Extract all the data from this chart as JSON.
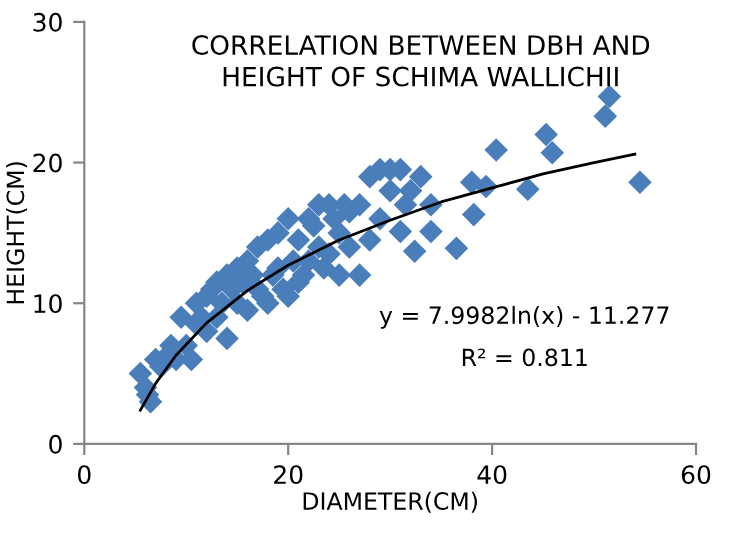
{
  "chart_data": {
    "type": "scatter",
    "title": "CORRELATION BETWEEN DBH AND\nHEIGHT OF SCHIMA WALLICHII",
    "xlabel": "DIAMETER(CM)",
    "ylabel": "HEIGHT(CM)",
    "xlim": [
      0,
      60
    ],
    "ylim": [
      0,
      30
    ],
    "xticks": [
      0,
      20,
      40,
      60
    ],
    "yticks": [
      0,
      10,
      20,
      30
    ],
    "grid": false,
    "marker": "diamond",
    "series": [
      {
        "color": "#4a7ebb",
        "x": [
          5.5,
          6,
          6.5,
          6.2,
          7,
          7.5,
          8,
          8.5,
          9,
          9.5,
          10,
          10.5,
          11,
          11,
          11.5,
          12,
          12,
          12.5,
          13,
          13,
          13.5,
          14,
          14,
          14.5,
          15,
          15,
          15.5,
          16,
          16,
          16.5,
          17,
          17,
          17.5,
          18,
          18,
          18.5,
          19,
          19,
          19.5,
          20,
          20,
          20.5,
          21,
          21,
          21.5,
          22,
          22,
          22.5,
          23,
          23,
          23.5,
          24,
          24,
          24.5,
          25,
          25,
          25.5,
          26,
          26,
          27,
          27,
          28,
          28,
          29,
          29,
          30,
          30,
          31,
          31,
          31.5,
          32,
          32.4,
          33,
          34,
          34,
          36.5,
          38,
          38.2,
          39.4,
          40.4,
          43.5,
          45.3,
          45.9,
          51.1,
          51.5,
          54.5
        ],
        "values": [
          5,
          4,
          3,
          3.5,
          6,
          5.5,
          6.2,
          7,
          6,
          9,
          7,
          6,
          10,
          8.5,
          9,
          10.5,
          8,
          11,
          11.5,
          9,
          10,
          12,
          7.5,
          11,
          12.5,
          10,
          11.5,
          13,
          9.5,
          12,
          14,
          11,
          10.5,
          14.5,
          10,
          12,
          15,
          12.5,
          11,
          16,
          10.5,
          13,
          14.5,
          11.5,
          12,
          16,
          13,
          15.5,
          17,
          14,
          12.5,
          17,
          13.5,
          16,
          15,
          12,
          17,
          16.5,
          14,
          17,
          12,
          19,
          14.5,
          19.5,
          16,
          18,
          19.5,
          19.5,
          15.1,
          17,
          18,
          13.7,
          19,
          17,
          15.1,
          13.9,
          18.6,
          16.3,
          18.3,
          20.9,
          18.1,
          22,
          20.7,
          23.3,
          24.7,
          18.6
        ]
      },
      {
        "type": "line",
        "color": "#000000",
        "marker": "none",
        "x": [
          5.5,
          7,
          9,
          12,
          16,
          20,
          25,
          30,
          35,
          40,
          45,
          50,
          54
        ],
        "values": [
          2.4,
          4.3,
          6.3,
          8.6,
          10.9,
          12.7,
          14.5,
          15.9,
          17.2,
          18.2,
          19.2,
          20.0,
          20.6
        ]
      }
    ],
    "annotations": [
      {
        "text": "y = 7.9982ln(x) - 11.277"
      },
      {
        "text": "R² = 0.811"
      }
    ]
  }
}
